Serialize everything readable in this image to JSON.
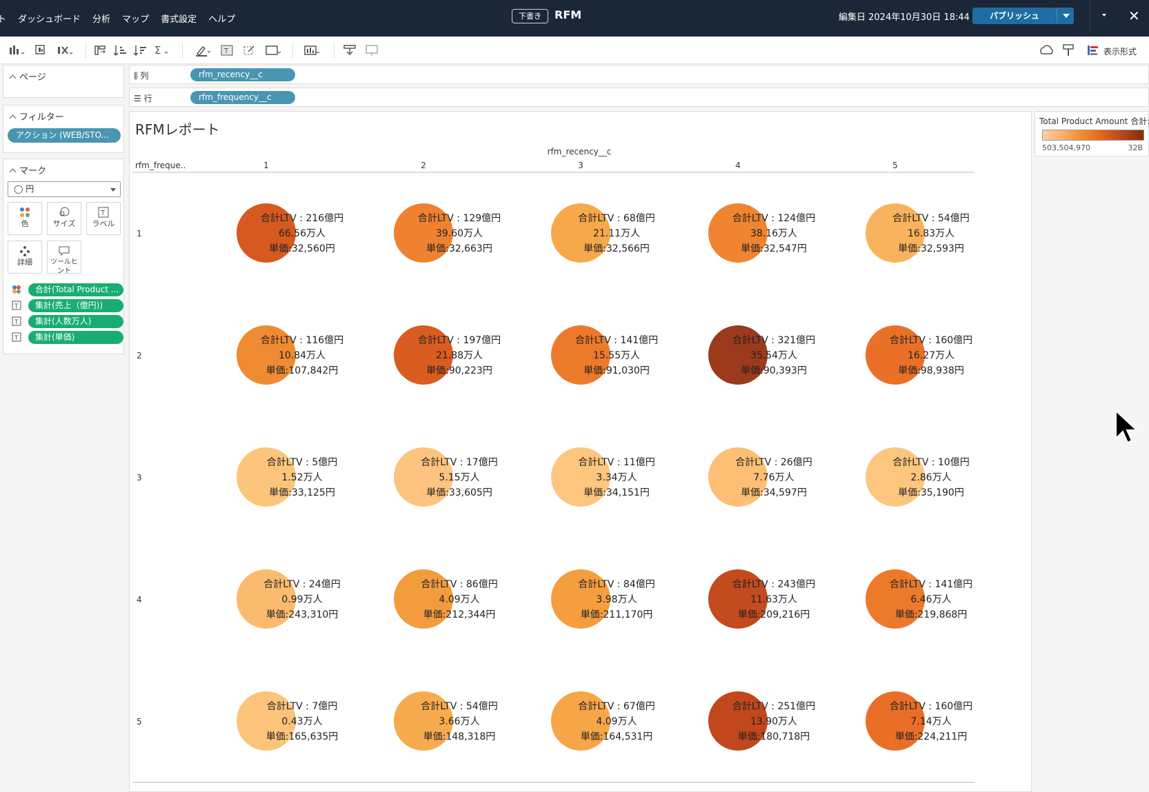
{
  "menu": [
    "ト",
    "ダッシュボード",
    "分析",
    "マップ",
    "書式設定",
    "ヘルプ"
  ],
  "header": {
    "draft_badge": "下書き",
    "title": "RFM",
    "edited": "編集日 2024年10月30日 18:44",
    "publish_label": "パブリッシュ"
  },
  "toolbar": {
    "format_label": "表示形式"
  },
  "pages_card": {
    "title": "ページ"
  },
  "filters_card": {
    "title": "フィルター",
    "pill": "アクション (WEB/STO..."
  },
  "marks_card": {
    "title": "マーク",
    "mark_type": "◯ 円",
    "buttons": [
      "色",
      "サイズ",
      "ラベル",
      "詳細",
      "ツールヒント"
    ],
    "fields": [
      "合計(Total Product ...",
      "集計(売上（億円))",
      "集計(人数万人)",
      "集計(単価)"
    ]
  },
  "shelves": {
    "columns_label": "列",
    "columns_pill": "rfm_recency__c",
    "rows_label": "行",
    "rows_pill": "rfm_frequency__c"
  },
  "legend": {
    "title": "Total Product Amount 合計:",
    "min": "503,504,970",
    "max": "32B"
  },
  "chart_data": {
    "type": "scatter",
    "title": "RFMレポート",
    "xlabel": "rfm_recency__c",
    "ylabel": "rfm_freque..",
    "x_categories": [
      "1",
      "2",
      "3",
      "4",
      "5"
    ],
    "y_categories": [
      "1",
      "2",
      "3",
      "4",
      "5"
    ],
    "color_scale": {
      "low": "#fdd0a2",
      "high": "#8c2d04"
    },
    "cells": [
      {
        "row": "1",
        "col": "1",
        "ltv": "合計LTV : 216億円",
        "people": "66.56万人",
        "price": "単価:32,560円",
        "color": "#d65a1f"
      },
      {
        "row": "1",
        "col": "2",
        "ltv": "合計LTV : 129億円",
        "people": "39.60万人",
        "price": "単価:32,663円",
        "color": "#ef8230"
      },
      {
        "row": "1",
        "col": "3",
        "ltv": "合計LTV : 68億円",
        "people": "21.11万人",
        "price": "単価:32,566円",
        "color": "#f6a84b"
      },
      {
        "row": "1",
        "col": "4",
        "ltv": "合計LTV : 124億円",
        "people": "38.16万人",
        "price": "単価:32,547円",
        "color": "#f08430"
      },
      {
        "row": "1",
        "col": "5",
        "ltv": "合計LTV : 54億円",
        "people": "16.83万人",
        "price": "単価:32,593円",
        "color": "#f9b35c"
      },
      {
        "row": "2",
        "col": "1",
        "ltv": "合計LTV : 116億円",
        "people": "10.84万人",
        "price": "単価:107,842円",
        "color": "#f08a33"
      },
      {
        "row": "2",
        "col": "2",
        "ltv": "合計LTV : 197億円",
        "people": "21.88万人",
        "price": "単価:90,223円",
        "color": "#d95d20"
      },
      {
        "row": "2",
        "col": "3",
        "ltv": "合計LTV : 141億円",
        "people": "15.55万人",
        "price": "単価:91,030円",
        "color": "#ec7a2a"
      },
      {
        "row": "2",
        "col": "4",
        "ltv": "合計LTV : 321億円",
        "people": "35.54万人",
        "price": "単価:90,393円",
        "color": "#9c3a1c"
      },
      {
        "row": "2",
        "col": "5",
        "ltv": "合計LTV : 160億円",
        "people": "16.27万人",
        "price": "単価:98,938円",
        "color": "#ea7028"
      },
      {
        "row": "3",
        "col": "1",
        "ltv": "合計LTV : 5億円",
        "people": "1.52万人",
        "price": "単価:33,125円",
        "color": "#fdc57c"
      },
      {
        "row": "3",
        "col": "2",
        "ltv": "合計LTV : 17億円",
        "people": "5.15万人",
        "price": "単価:33,605円",
        "color": "#fcc47e"
      },
      {
        "row": "3",
        "col": "3",
        "ltv": "合計LTV : 11億円",
        "people": "3.34万人",
        "price": "単価:34,151円",
        "color": "#fdc67e"
      },
      {
        "row": "3",
        "col": "4",
        "ltv": "合計LTV : 26億円",
        "people": "7.76万人",
        "price": "単価:34,597円",
        "color": "#fcbf74"
      },
      {
        "row": "3",
        "col": "5",
        "ltv": "合計LTV : 10億円",
        "people": "2.86万人",
        "price": "単価:35,190円",
        "color": "#fdc67f"
      },
      {
        "row": "4",
        "col": "1",
        "ltv": "合計LTV : 24億円",
        "people": "0.99万人",
        "price": "単価:243,310円",
        "color": "#fbbb6f"
      },
      {
        "row": "4",
        "col": "2",
        "ltv": "合計LTV : 86億円",
        "people": "4.09万人",
        "price": "単価:212,344円",
        "color": "#f39c3e"
      },
      {
        "row": "4",
        "col": "3",
        "ltv": "合計LTV : 84億円",
        "people": "3.98万人",
        "price": "単価:211,170円",
        "color": "#f49e40"
      },
      {
        "row": "4",
        "col": "4",
        "ltv": "合計LTV : 243億円",
        "people": "11.63万人",
        "price": "単価:209,216円",
        "color": "#c44b1d"
      },
      {
        "row": "4",
        "col": "5",
        "ltv": "合計LTV : 141億円",
        "people": "6.46万人",
        "price": "単価:219,868円",
        "color": "#ec7a2a"
      },
      {
        "row": "5",
        "col": "1",
        "ltv": "合計LTV : 7億円",
        "people": "0.43万人",
        "price": "単価:165,635円",
        "color": "#fdc37a"
      },
      {
        "row": "5",
        "col": "2",
        "ltv": "合計LTV : 54億円",
        "people": "3.66万人",
        "price": "単価:148,318円",
        "color": "#f7ab4f"
      },
      {
        "row": "5",
        "col": "3",
        "ltv": "合計LTV : 67億円",
        "people": "4.09万人",
        "price": "単価:164,531円",
        "color": "#f6a647"
      },
      {
        "row": "5",
        "col": "4",
        "ltv": "合計LTV : 251億円",
        "people": "13.90万人",
        "price": "単価:180,718円",
        "color": "#c2471c"
      },
      {
        "row": "5",
        "col": "5",
        "ltv": "合計LTV : 160億円",
        "people": "7.14万人",
        "price": "単価:224,211円",
        "color": "#ea6e26"
      }
    ]
  }
}
